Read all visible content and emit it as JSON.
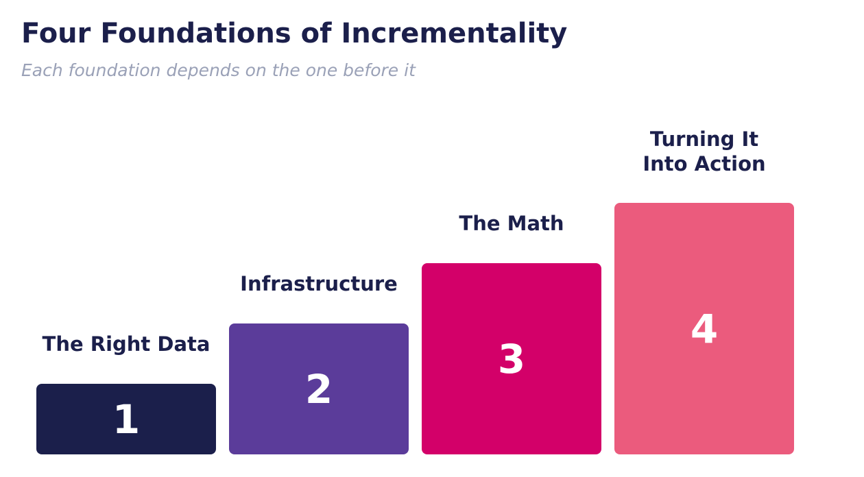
{
  "header": {
    "title": "Four Foundations of Incrementality",
    "subtitle": "Each foundation depends on the one before it"
  },
  "steps": [
    {
      "number": "1",
      "label": "The Right Data",
      "color": "#1b1f4b"
    },
    {
      "number": "2",
      "label": "Infrastructure",
      "color": "#5b3c9a"
    },
    {
      "number": "3",
      "label": "The Math",
      "color": "#d30069"
    },
    {
      "number": "4",
      "label": "Turning It\nInto Action",
      "color": "#eb5b7d"
    }
  ]
}
